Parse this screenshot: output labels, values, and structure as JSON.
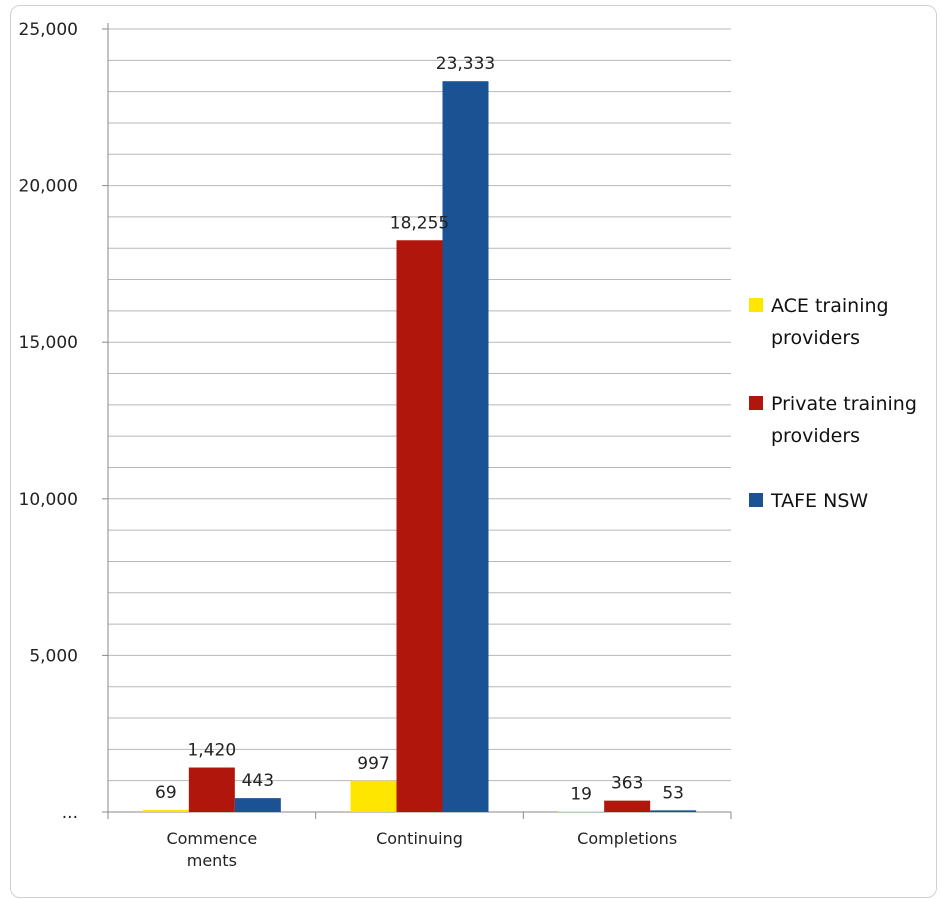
{
  "chart_data": {
    "type": "bar",
    "title": "",
    "xlabel": "",
    "ylabel": "",
    "ylim": [
      0,
      25000
    ],
    "y_ticks": [
      {
        "value": 0,
        "label": "..."
      },
      {
        "value": 5000,
        "label": "5,000"
      },
      {
        "value": 10000,
        "label": "10,000"
      },
      {
        "value": 15000,
        "label": "15,000"
      },
      {
        "value": 20000,
        "label": "20,000"
      },
      {
        "value": 25000,
        "label": "25,000"
      }
    ],
    "minor_grid_step": 1000,
    "grid": true,
    "legend_position": "right",
    "categories": [
      [
        "Commence",
        "ments"
      ],
      [
        "Continuing"
      ],
      [
        "Completions"
      ]
    ],
    "series": [
      {
        "name": "ACE training providers",
        "legend_lines": [
          "ACE training",
          "providers"
        ],
        "color": "#ffe600",
        "values": [
          69,
          997,
          19
        ],
        "labels": [
          "69",
          "997",
          "19"
        ]
      },
      {
        "name": "Private training providers",
        "legend_lines": [
          "Private training",
          "providers"
        ],
        "color": "#b0160c",
        "values": [
          1420,
          18255,
          363
        ],
        "labels": [
          "1,420",
          "18,255",
          "363"
        ]
      },
      {
        "name": "TAFE NSW",
        "legend_lines": [
          "TAFE NSW"
        ],
        "color": "#1b5293",
        "values": [
          443,
          23333,
          53
        ],
        "labels": [
          "443",
          "23,333",
          "53"
        ]
      }
    ]
  }
}
